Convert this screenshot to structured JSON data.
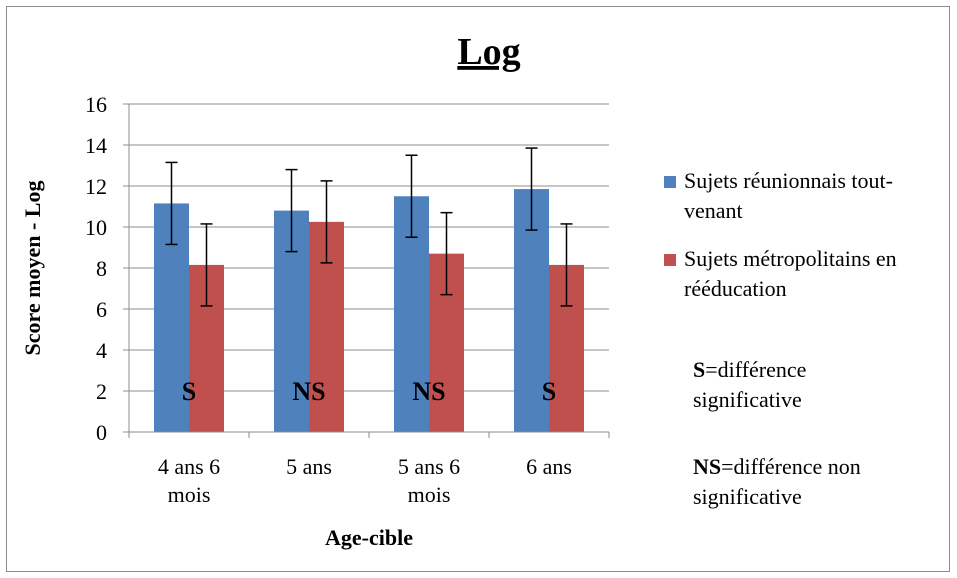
{
  "chart_data": {
    "type": "bar",
    "title": "Log",
    "xlabel": "Age-cible",
    "ylabel": "Score moyen - Log",
    "ylim": [
      0,
      16
    ],
    "ytick_step": 2,
    "yticks": [
      "0",
      "2",
      "4",
      "6",
      "8",
      "10",
      "12",
      "14",
      "16"
    ],
    "grid": true,
    "legend_position": "right",
    "categories": [
      [
        "4 ans 6",
        "mois"
      ],
      [
        "5 ans"
      ],
      [
        "5 ans 6",
        "mois"
      ],
      [
        "6 ans"
      ]
    ],
    "series": [
      {
        "name": [
          "Sujets réunionnais tout-",
          "venant"
        ],
        "color": "#4f81bd",
        "values": [
          11.15,
          10.8,
          11.5,
          11.85
        ],
        "error": [
          2.0,
          2.0,
          2.0,
          2.0
        ]
      },
      {
        "name": [
          "Sujets métropolitains en",
          "rééducation"
        ],
        "color": "#c0504d",
        "values": [
          8.15,
          10.25,
          8.7,
          8.15
        ],
        "error": [
          2.0,
          2.0,
          2.0,
          2.0
        ]
      }
    ],
    "significance": [
      "S",
      "NS",
      "NS",
      "S"
    ]
  },
  "notes": [
    {
      "bold": "S",
      "rest": "=différence",
      "line2": "significative"
    },
    {
      "bold": "NS",
      "rest": "=différence non",
      "line2": "significative"
    }
  ]
}
